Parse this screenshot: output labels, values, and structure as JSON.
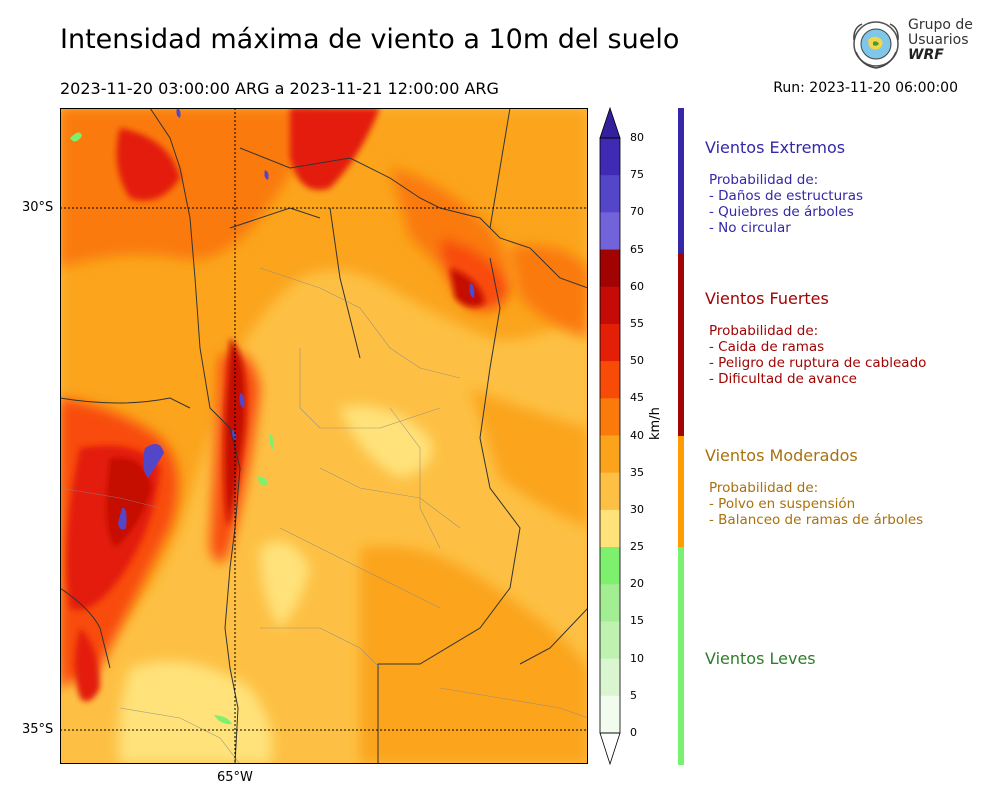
{
  "header": {
    "title": "Intensidad máxima de viento a 10m del suelo",
    "period": "2023-11-20 03:00:00 ARG  a  2023-11-21 12:00:00 ARG",
    "run": "Run: 2023-11-20 06:00:00"
  },
  "logo": {
    "line1": "Grupo de",
    "line2": "Usuarios",
    "line3": "WRF"
  },
  "map": {
    "lat_labels": [
      "30°S",
      "35°S"
    ],
    "lon_labels": [
      "65°W"
    ]
  },
  "colorbar": {
    "unit": "km/h",
    "ticks": [
      "80",
      "75",
      "70",
      "65",
      "60",
      "55",
      "50",
      "45",
      "40",
      "35",
      "30",
      "25",
      "20",
      "15",
      "10",
      "5",
      "0"
    ],
    "colors": {
      "0-5": "#f1fbee",
      "5-10": "#d9f6d0",
      "10-15": "#bff2b0",
      "15-20": "#a3ed92",
      "20-25": "#7df06d",
      "25-30": "#ffe27a",
      "30-35": "#fdc044",
      "35-40": "#fba41b",
      "40-45": "#fa7a0b",
      "45-50": "#f84b07",
      "50-55": "#e31f07",
      "55-60": "#c50b05",
      "60-65": "#a10303",
      "65-70": "#7363da",
      "70-75": "#5446c9",
      "75-80": "#3f2ab3",
      "80+": "#32209f"
    }
  },
  "categories": [
    {
      "title": "Vientos Extremos",
      "color": "#3427a8",
      "lines": [
        "Probabilidad de:",
        "- Daños de estructuras",
        "- Quiebres de árboles",
        "- No circular"
      ]
    },
    {
      "title": "Vientos Fuertes",
      "color": "#a00404",
      "lines": [
        "Probabilidad de:",
        "- Caida de ramas",
        "- Peligro de ruptura de cableado",
        "- Dificultad de avance"
      ]
    },
    {
      "title": "Vientos Moderados",
      "color": "#a8710d",
      "bar_color": "#ff9d00",
      "lines": [
        "Probabilidad de:",
        "- Polvo en suspensión",
        "- Balanceo de ramas de árboles"
      ]
    },
    {
      "title": "Vientos Leves",
      "color": "#2f7d2a",
      "bar_color": "#78f070",
      "lines": []
    }
  ]
}
